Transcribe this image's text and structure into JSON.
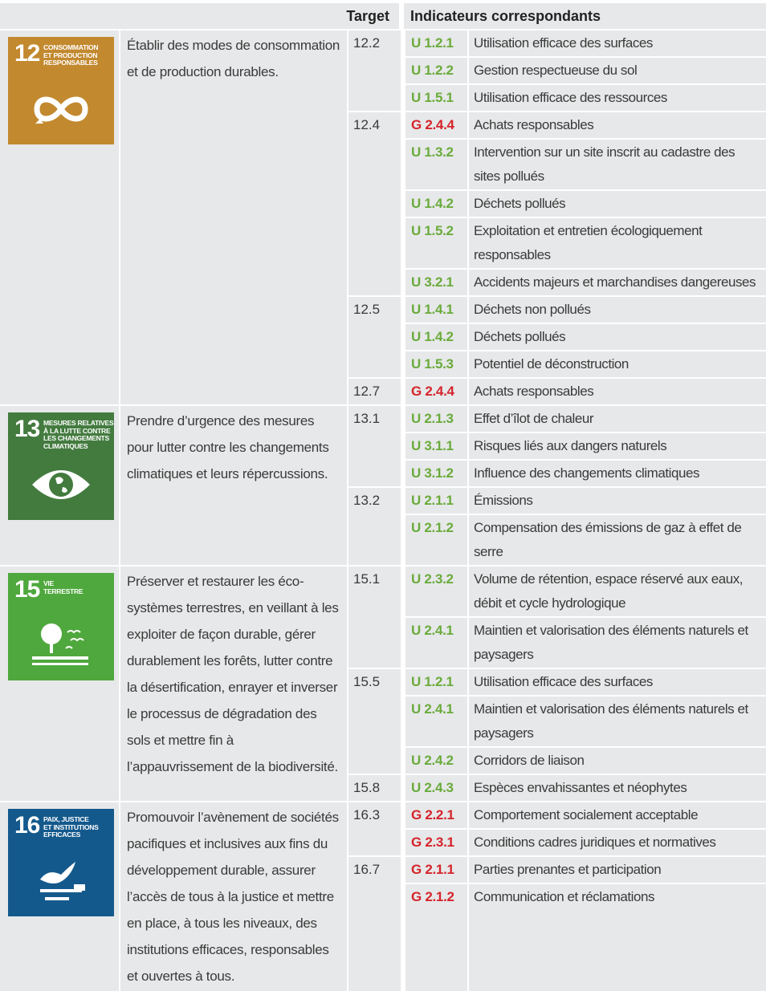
{
  "header": {
    "target": "Target",
    "indicators": "Indicateurs correspondants"
  },
  "code_colors": {
    "U": "#6aab3c",
    "G": "#d5242c"
  },
  "goals": [
    {
      "icon": {
        "number": "12",
        "label": [
          "CONSOMMATION",
          "ET PRODUCTION",
          "RESPONSABLES"
        ],
        "color": "#c2892f"
      },
      "description": "Établir des modes de consommation et de production durables.",
      "targets": [
        {
          "target": "12.2",
          "indicators": [
            {
              "code": "U 1.2.1",
              "name": "Utilisation efficace des surfaces"
            },
            {
              "code": "U 1.2.2",
              "name": "Gestion respectueuse du sol"
            },
            {
              "code": "U 1.5.1",
              "name": "Utilisation efficace des ressources"
            }
          ]
        },
        {
          "target": "12.4",
          "indicators": [
            {
              "code": "G 2.4.4",
              "name": "Achats responsables"
            },
            {
              "code": "U 1.3.2",
              "name": "Intervention sur un site inscrit au cadastre des sites pollués"
            },
            {
              "code": "U 1.4.2",
              "name": "Déchets pollués"
            },
            {
              "code": "U 1.5.2",
              "name": "Exploitation et entretien écologiquement responsables"
            },
            {
              "code": "U 3.2.1",
              "name": "Accidents majeurs et marchandises dangereuses"
            }
          ]
        },
        {
          "target": "12.5",
          "indicators": [
            {
              "code": "U 1.4.1",
              "name": "Déchets non pollués"
            },
            {
              "code": "U 1.4.2",
              "name": "Déchets pollués"
            },
            {
              "code": "U 1.5.3",
              "name": "Potentiel de déconstruction"
            }
          ]
        },
        {
          "target": "12.7",
          "indicators": [
            {
              "code": "G 2.4.4",
              "name": "Achats responsables"
            }
          ]
        }
      ]
    },
    {
      "icon": {
        "number": "13",
        "label": [
          "MESURES RELATIVES",
          "À LA LUTTE CONTRE",
          "LES CHANGEMENTS",
          "CLIMATIQUES"
        ],
        "color": "#437b3f"
      },
      "description": "Prendre d’urgence des mesures pour lutter contre les changements climatiques et leurs répercussions.",
      "targets": [
        {
          "target": "13.1",
          "indicators": [
            {
              "code": "U 2.1.3",
              "name": "Effet d’îlot de chaleur"
            },
            {
              "code": "U 3.1.1",
              "name": "Risques liés aux dangers naturels"
            },
            {
              "code": "U 3.1.2",
              "name": "Influence des changements climatiques"
            }
          ]
        },
        {
          "target": "13.2",
          "indicators": [
            {
              "code": "U 2.1.1",
              "name": "Émissions"
            },
            {
              "code": "U 2.1.2",
              "name": "Compensation des émissions de gaz à effet de serre"
            }
          ]
        }
      ]
    },
    {
      "icon": {
        "number": "15",
        "label": [
          "VIE",
          "TERRESTRE"
        ],
        "color": "#4fa83d"
      },
      "description": "Préserver et restaurer les éco­systèmes terrestres, en veillant à les exploiter de façon durable, gérer durablement les forêts, lutter contre la désertification, enrayer et inverser le processus de dégradation des sols et mettre fin à l’appauvrissement de la biodiversité.",
      "targets": [
        {
          "target": "15.1",
          "indicators": [
            {
              "code": "U 2.3.2",
              "name": "Volume de rétention, espace réservé aux eaux, débit et cycle hydrologique"
            },
            {
              "code": "U 2.4.1",
              "name": "Maintien et valorisation des éléments naturels et paysagers"
            }
          ]
        },
        {
          "target": "15.5",
          "indicators": [
            {
              "code": "U 1.2.1",
              "name": "Utilisation efficace des surfaces"
            },
            {
              "code": "U 2.4.1",
              "name": "Maintien et valorisation des éléments naturels et paysagers"
            },
            {
              "code": "U 2.4.2",
              "name": "Corridors de liaison"
            }
          ]
        },
        {
          "target": "15.8",
          "indicators": [
            {
              "code": "U 2.4.3",
              "name": "Espèces envahissantes et néophytes"
            }
          ]
        }
      ]
    },
    {
      "icon": {
        "number": "16",
        "label": [
          "PAIX, JUSTICE",
          "ET INSTITUTIONS",
          "EFFICACES"
        ],
        "color": "#14598c"
      },
      "description": "Promouvoir l’avènement de so­ciétés pacifiques et inclusives aux fins du développement durable, assurer l’accès de tous à la justice et mettre en place, à tous les niveaux, des institutions efficaces, respon­sables et ouvertes à tous.",
      "targets": [
        {
          "target": "16.3",
          "indicators": [
            {
              "code": "G 2.2.1",
              "name": "Comportement socialement acceptable"
            },
            {
              "code": "G 2.3.1",
              "name": "Conditions cadres juridiques et normatives"
            }
          ]
        },
        {
          "target": "16.7",
          "indicators": [
            {
              "code": "G 2.1.1",
              "name": "Parties prenantes et participation"
            },
            {
              "code": "G 2.1.2",
              "name": "Communication et réclamations"
            }
          ]
        }
      ]
    }
  ]
}
